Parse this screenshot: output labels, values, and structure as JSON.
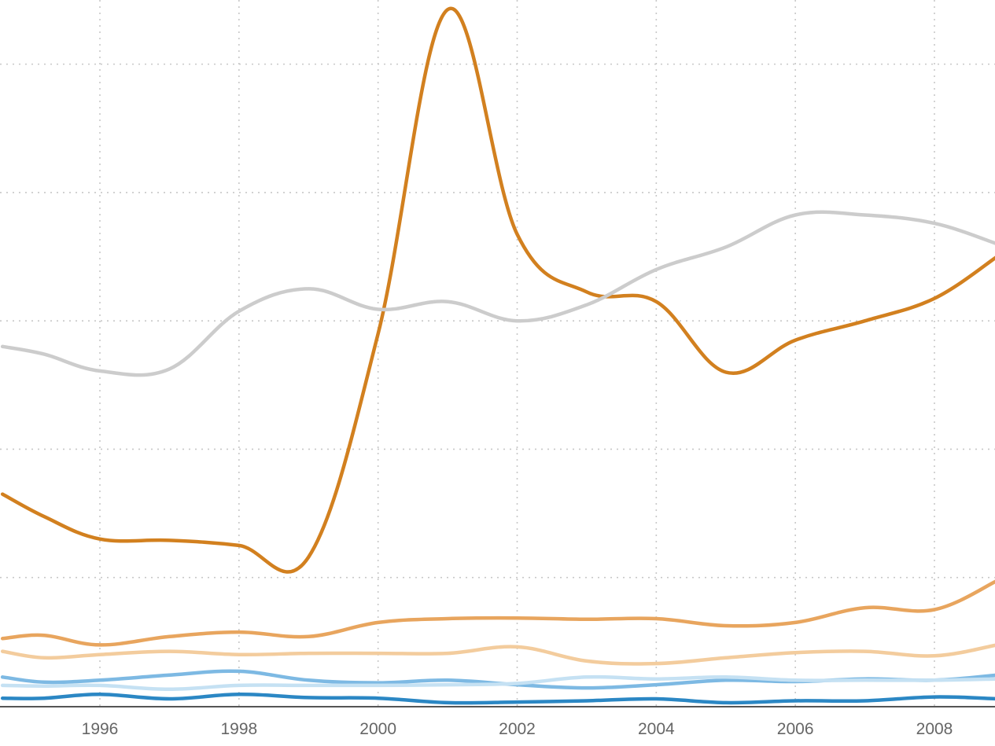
{
  "chart_data": {
    "type": "line",
    "x_ticks": [
      1996,
      1998,
      2000,
      2002,
      2004,
      2006,
      2008
    ],
    "xlim": [
      1994.6,
      2008.9
    ],
    "ylim": [
      0,
      1100
    ],
    "y_gridlines": [
      200,
      400,
      600,
      800,
      1000
    ],
    "grid": true,
    "series": [
      {
        "color": "#d2801f",
        "values": [
          [
            1994.6,
            330
          ],
          [
            1995.2,
            295
          ],
          [
            1996,
            260
          ],
          [
            1997,
            258
          ],
          [
            1998,
            250
          ],
          [
            1999,
            232
          ],
          [
            2000,
            580
          ],
          [
            2001,
            1085
          ],
          [
            2002,
            735
          ],
          [
            2003,
            645
          ],
          [
            2004,
            630
          ],
          [
            2005,
            520
          ],
          [
            2006,
            570
          ],
          [
            2007,
            600
          ],
          [
            2008,
            635
          ],
          [
            2008.9,
            700
          ]
        ]
      },
      {
        "color": "#cccccc",
        "values": [
          [
            1994.6,
            560
          ],
          [
            1995.2,
            548
          ],
          [
            1996,
            522
          ],
          [
            1997,
            525
          ],
          [
            1998,
            615
          ],
          [
            1999,
            650
          ],
          [
            2000,
            618
          ],
          [
            2001,
            630
          ],
          [
            2002,
            600
          ],
          [
            2003,
            625
          ],
          [
            2004,
            680
          ],
          [
            2005,
            715
          ],
          [
            2006,
            765
          ],
          [
            2007,
            765
          ],
          [
            2008,
            752
          ],
          [
            2008.9,
            720
          ]
        ]
      },
      {
        "color": "#e8a55e",
        "values": [
          [
            1994.6,
            105
          ],
          [
            1995.2,
            110
          ],
          [
            1996,
            95
          ],
          [
            1997,
            108
          ],
          [
            1998,
            115
          ],
          [
            1999,
            108
          ],
          [
            2000,
            130
          ],
          [
            2001,
            136
          ],
          [
            2002,
            137
          ],
          [
            2003,
            135
          ],
          [
            2004,
            136
          ],
          [
            2005,
            125
          ],
          [
            2006,
            130
          ],
          [
            2007,
            153
          ],
          [
            2008,
            150
          ],
          [
            2008.9,
            195
          ]
        ]
      },
      {
        "color": "#f3cc9d",
        "values": [
          [
            1994.6,
            85
          ],
          [
            1995.2,
            75
          ],
          [
            1996,
            80
          ],
          [
            1997,
            85
          ],
          [
            1998,
            80
          ],
          [
            1999,
            82
          ],
          [
            2000,
            82
          ],
          [
            2001,
            82
          ],
          [
            2002,
            92
          ],
          [
            2003,
            70
          ],
          [
            2004,
            66
          ],
          [
            2005,
            75
          ],
          [
            2006,
            83
          ],
          [
            2007,
            85
          ],
          [
            2008,
            78
          ],
          [
            2008.9,
            95
          ]
        ]
      },
      {
        "color": "#7db9e3",
        "values": [
          [
            1994.6,
            45
          ],
          [
            1995.2,
            37
          ],
          [
            1996,
            40
          ],
          [
            1997,
            48
          ],
          [
            1998,
            54
          ],
          [
            1999,
            40
          ],
          [
            2000,
            36
          ],
          [
            2001,
            40
          ],
          [
            2002,
            33
          ],
          [
            2003,
            28
          ],
          [
            2004,
            33
          ],
          [
            2005,
            40
          ],
          [
            2006,
            38
          ],
          [
            2007,
            42
          ],
          [
            2008,
            40
          ],
          [
            2008.9,
            48
          ]
        ]
      },
      {
        "color": "#c5e1f3",
        "values": [
          [
            1994.6,
            32
          ],
          [
            1995.2,
            31
          ],
          [
            1996,
            32
          ],
          [
            1997,
            26
          ],
          [
            1998,
            32
          ],
          [
            1999,
            32
          ],
          [
            2000,
            32
          ],
          [
            2001,
            33
          ],
          [
            2002,
            35
          ],
          [
            2003,
            45
          ],
          [
            2004,
            42
          ],
          [
            2005,
            45
          ],
          [
            2006,
            40
          ],
          [
            2007,
            40
          ],
          [
            2008,
            40
          ],
          [
            2008.9,
            42
          ]
        ]
      },
      {
        "color": "#2b87c4",
        "values": [
          [
            1994.6,
            12
          ],
          [
            1995.2,
            12
          ],
          [
            1996,
            18
          ],
          [
            1997,
            11
          ],
          [
            1998,
            18
          ],
          [
            1999,
            13
          ],
          [
            2000,
            12
          ],
          [
            2001,
            5
          ],
          [
            2002,
            6
          ],
          [
            2003,
            8
          ],
          [
            2004,
            11
          ],
          [
            2005,
            5
          ],
          [
            2006,
            8
          ],
          [
            2007,
            8
          ],
          [
            2008,
            14
          ],
          [
            2008.9,
            11
          ]
        ]
      }
    ]
  }
}
